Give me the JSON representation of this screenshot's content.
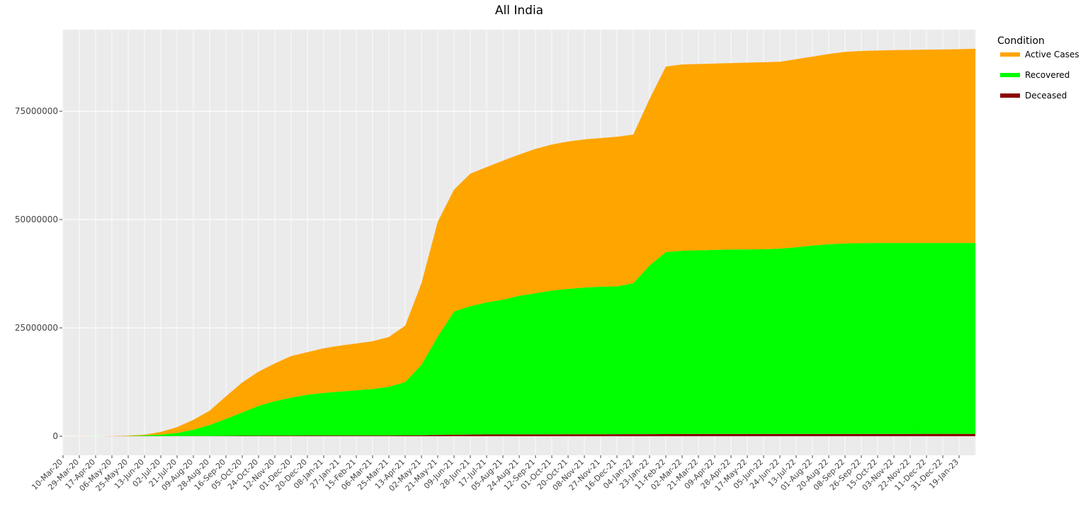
{
  "chart_data": {
    "type": "stacked_area",
    "title": "All India",
    "legend_title": "Condition",
    "legend_position": "right",
    "grid": true,
    "categories": [
      "10-Mar-20",
      "29-Mar-20",
      "17-Apr-20",
      "06-May-20",
      "25-May-20",
      "13-Jun-20",
      "02-Jul-20",
      "21-Jul-20",
      "09-Aug-20",
      "28-Aug-20",
      "16-Sep-20",
      "05-Oct-20",
      "24-Oct-20",
      "12-Nov-20",
      "01-Dec-20",
      "20-Dec-20",
      "08-Jan-21",
      "27-Jan-21",
      "15-Feb-21",
      "06-Mar-21",
      "25-Mar-21",
      "13-Apr-21",
      "02-May-21",
      "21-May-21",
      "09-Jun-21",
      "28-Jun-21",
      "17-Jul-21",
      "05-Aug-21",
      "24-Aug-21",
      "12-Sep-21",
      "01-Oct-21",
      "20-Oct-21",
      "08-Nov-21",
      "27-Nov-21",
      "16-Dec-21",
      "04-Jan-22",
      "23-Jan-22",
      "11-Feb-22",
      "02-Mar-22",
      "21-Mar-22",
      "09-Apr-22",
      "28-Apr-22",
      "17-May-22",
      "05-Jun-22",
      "24-Jun-22",
      "13-Jul-22",
      "01-Aug-22",
      "20-Aug-22",
      "08-Sep-22",
      "26-Sep-22",
      "15-Oct-22",
      "03-Nov-22",
      "22-Nov-22",
      "11-Dec-22",
      "31-Dec-22",
      "19-Jan-23",
      null
    ],
    "series": [
      {
        "name": "Active Cases",
        "color": "#ffa500",
        "values": [
          0,
          1000,
          7000,
          25000,
          90000,
          160000,
          620000,
          1350000,
          2300000,
          3300000,
          5200000,
          6900000,
          7900000,
          8700000,
          9600000,
          9800000,
          10300000,
          10600000,
          10800000,
          11000000,
          11500000,
          13000000,
          18800000,
          26500000,
          28100000,
          30600000,
          31200000,
          32100000,
          32600000,
          33300000,
          33700000,
          34000000,
          34200000,
          34300000,
          34500000,
          34300000,
          38400000,
          42800000,
          43000000,
          43000000,
          43000000,
          43000000,
          43100000,
          43150000,
          43100000,
          43400000,
          43600000,
          43900000,
          44200000,
          44350000,
          44400000,
          44500000,
          44550000,
          44600000,
          44650000,
          44700000,
          44800000
        ]
      },
      {
        "name": "Recovered",
        "color": "#00ff00",
        "values": [
          0,
          1000,
          2500,
          13000,
          56000,
          160000,
          360000,
          720000,
          1455000,
          2540000,
          3920000,
          5400000,
          6880000,
          7970000,
          8760000,
          9455000,
          9850000,
          10146000,
          10444000,
          10742000,
          11239000,
          12328000,
          16280000,
          22700000,
          28440000,
          29600000,
          30485000,
          31070000,
          31960000,
          32555000,
          33150000,
          33545000,
          33840000,
          34035000,
          34125000,
          34820000,
          38910000,
          41990000,
          42285000,
          42380000,
          42480000,
          42575000,
          42575000,
          42620000,
          42770000,
          43070000,
          43470000,
          43770000,
          43970000,
          44020000,
          44070000,
          44070000,
          44070000,
          44065000,
          44065000,
          44060000,
          44060000
        ]
      },
      {
        "name": "Deceased",
        "color": "#8b0000",
        "values": [
          0,
          0,
          500,
          2000,
          4000,
          10000,
          20000,
          30000,
          45000,
          60000,
          80000,
          100000,
          120000,
          130000,
          140000,
          145000,
          150000,
          154000,
          156000,
          158000,
          161000,
          172000,
          220000,
          300000,
          360000,
          400000,
          415000,
          430000,
          440000,
          445000,
          450000,
          455000,
          460000,
          465000,
          475000,
          480000,
          490000,
          510000,
          515000,
          520000,
          520000,
          525000,
          525000,
          530000,
          530000,
          530000,
          530000,
          530000,
          530000,
          530000,
          530000,
          530000,
          530000,
          535000,
          535000,
          540000,
          540000
        ]
      }
    ],
    "ylim": [
      -4400000,
      93800000
    ],
    "yticks": [
      0,
      25000000,
      50000000,
      75000000
    ]
  }
}
